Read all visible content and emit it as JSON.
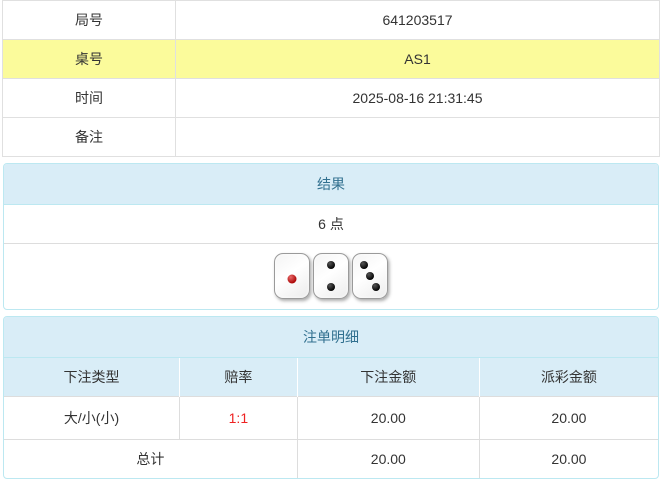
{
  "info_table": {
    "rows": [
      {
        "label": "局号",
        "value": "641203517"
      },
      {
        "label": "桌号",
        "value": "AS1"
      },
      {
        "label": "时间",
        "value": "2025-08-16 21:31:45"
      },
      {
        "label": "备注",
        "value": ""
      }
    ]
  },
  "result_panel": {
    "title": "结果",
    "points": "6 点",
    "dice": [
      1,
      2,
      3
    ]
  },
  "bets_panel": {
    "title": "注单明细",
    "columns": [
      "下注类型",
      "赔率",
      "下注金额",
      "派彩金额"
    ],
    "rows": [
      {
        "type": "大/小(小)",
        "odds": "1:1",
        "bet": "20.00",
        "payout": "20.00"
      }
    ],
    "total": {
      "label": "总计",
      "bet": "20.00",
      "payout": "20.00"
    }
  },
  "colors": {
    "highlight_yellow": "#fbfb9b",
    "panel_header_bg": "#d9edf7",
    "panel_border": "#bce8f1",
    "panel_header_text": "#31708f",
    "table_border": "#dddddd",
    "odds_red": "#ee2222",
    "text": "#333333",
    "die_pip_black": "#000000",
    "die_pip_red": "#a80000"
  }
}
